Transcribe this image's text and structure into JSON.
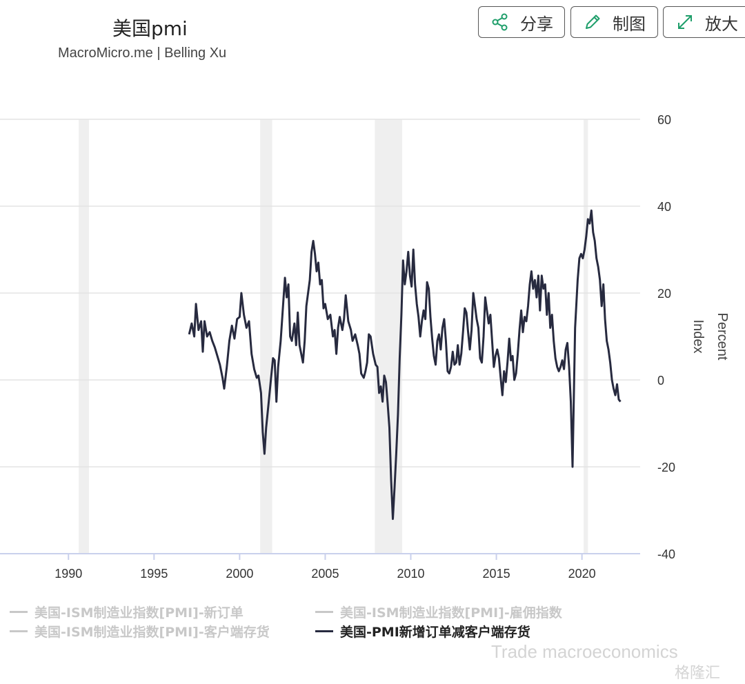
{
  "header": {
    "title": "美国pmi",
    "subtitle": "MacroMicro.me | Belling Xu"
  },
  "toolbar": {
    "share_label": "分享",
    "edit_label": "制图",
    "expand_label": "放大"
  },
  "watermark": {
    "text": "Trade macroeconomics",
    "brand": "格隆汇"
  },
  "colors": {
    "series": "#272a3f",
    "recession": "#efefef",
    "grid": "#e3e3e3",
    "x_axis": "#c9d0ec",
    "button_icon": "#1e9e6a",
    "legend_inactive": "#c8c8c8"
  },
  "chart_data": {
    "type": "line",
    "x_ticks": [
      "1990",
      "1995",
      "2000",
      "2005",
      "2010",
      "2015",
      "2020"
    ],
    "y_ticks": [
      "60",
      "40",
      "20",
      "0",
      "-20",
      "-40"
    ],
    "ylim": [
      -40,
      60
    ],
    "xlim": [
      1986.0,
      2023.4
    ],
    "y_axis_labels": [
      "Percent",
      "Index"
    ],
    "grid": true,
    "legend_position": "bottom",
    "recession_bands": [
      [
        1990.6,
        1991.2
      ],
      [
        2001.2,
        2001.9
      ],
      [
        2007.9,
        2009.5
      ],
      [
        2020.1,
        2020.35
      ]
    ],
    "legend": [
      {
        "name": "美国-ISM制造业指数[PMI]-新订单",
        "active": false
      },
      {
        "name": "美国-ISM制造业指数[PMI]-雇佣指数",
        "active": false
      },
      {
        "name": "美国-ISM制造业指数[PMI]-客户端存货",
        "active": false
      },
      {
        "name": "美国-PMI新增订单减客户端存货",
        "active": true
      }
    ],
    "series": [
      {
        "name": "美国-PMI新增订单减客户端存货",
        "points": [
          [
            1997.05,
            10.5
          ],
          [
            1997.2,
            13.0
          ],
          [
            1997.35,
            10.0
          ],
          [
            1997.45,
            17.5
          ],
          [
            1997.6,
            11.5
          ],
          [
            1997.75,
            13.5
          ],
          [
            1997.85,
            6.5
          ],
          [
            1997.95,
            13.5
          ],
          [
            1998.1,
            10.0
          ],
          [
            1998.25,
            11.0
          ],
          [
            1998.4,
            9.0
          ],
          [
            1998.55,
            7.5
          ],
          [
            1998.7,
            5.5
          ],
          [
            1998.85,
            3.5
          ],
          [
            1999.0,
            0.5
          ],
          [
            1999.1,
            -2.0
          ],
          [
            1999.25,
            3.0
          ],
          [
            1999.4,
            9.0
          ],
          [
            1999.55,
            12.5
          ],
          [
            1999.7,
            9.5
          ],
          [
            1999.85,
            14.0
          ],
          [
            2000.0,
            14.5
          ],
          [
            2000.1,
            20.0
          ],
          [
            2000.25,
            15.0
          ],
          [
            2000.4,
            12.0
          ],
          [
            2000.55,
            13.5
          ],
          [
            2000.7,
            6.0
          ],
          [
            2000.85,
            2.5
          ],
          [
            2001.0,
            0.5
          ],
          [
            2001.1,
            1.0
          ],
          [
            2001.25,
            -3.0
          ],
          [
            2001.35,
            -12.0
          ],
          [
            2001.45,
            -17.0
          ],
          [
            2001.55,
            -11.0
          ],
          [
            2001.7,
            -5.0
          ],
          [
            2001.85,
            1.0
          ],
          [
            2001.95,
            5.0
          ],
          [
            2002.05,
            4.5
          ],
          [
            2002.15,
            -5.0
          ],
          [
            2002.25,
            3.0
          ],
          [
            2002.4,
            9.0
          ],
          [
            2002.55,
            18.0
          ],
          [
            2002.65,
            23.5
          ],
          [
            2002.75,
            19.0
          ],
          [
            2002.85,
            22.0
          ],
          [
            2002.95,
            10.0
          ],
          [
            2003.05,
            9.0
          ],
          [
            2003.2,
            13.0
          ],
          [
            2003.3,
            8.0
          ],
          [
            2003.4,
            15.5
          ],
          [
            2003.5,
            8.0
          ],
          [
            2003.6,
            6.0
          ],
          [
            2003.7,
            4.0
          ],
          [
            2003.8,
            9.0
          ],
          [
            2003.9,
            17.0
          ],
          [
            2004.0,
            20.0
          ],
          [
            2004.1,
            23.0
          ],
          [
            2004.2,
            29.5
          ],
          [
            2004.3,
            32.0
          ],
          [
            2004.4,
            29.0
          ],
          [
            2004.5,
            25.0
          ],
          [
            2004.6,
            27.0
          ],
          [
            2004.7,
            22.0
          ],
          [
            2004.8,
            23.0
          ],
          [
            2004.9,
            16.5
          ],
          [
            2005.0,
            17.5
          ],
          [
            2005.15,
            14.0
          ],
          [
            2005.3,
            15.0
          ],
          [
            2005.45,
            10.0
          ],
          [
            2005.55,
            11.5
          ],
          [
            2005.65,
            6.0
          ],
          [
            2005.75,
            12.0
          ],
          [
            2005.85,
            14.5
          ],
          [
            2006.0,
            11.5
          ],
          [
            2006.1,
            14.0
          ],
          [
            2006.2,
            19.5
          ],
          [
            2006.35,
            13.5
          ],
          [
            2006.5,
            11.5
          ],
          [
            2006.6,
            9.0
          ],
          [
            2006.75,
            10.5
          ],
          [
            2006.9,
            8.0
          ],
          [
            2007.0,
            6.0
          ],
          [
            2007.1,
            1.5
          ],
          [
            2007.25,
            0.5
          ],
          [
            2007.35,
            2.0
          ],
          [
            2007.45,
            4.0
          ],
          [
            2007.55,
            10.5
          ],
          [
            2007.65,
            10.0
          ],
          [
            2007.8,
            6.0
          ],
          [
            2007.95,
            3.5
          ],
          [
            2008.05,
            3.0
          ],
          [
            2008.15,
            -3.0
          ],
          [
            2008.25,
            -1.5
          ],
          [
            2008.35,
            -5.0
          ],
          [
            2008.45,
            1.0
          ],
          [
            2008.55,
            -0.5
          ],
          [
            2008.65,
            -5.5
          ],
          [
            2008.75,
            -11.0
          ],
          [
            2008.85,
            -23.0
          ],
          [
            2008.95,
            -32.0
          ],
          [
            2009.05,
            -25.0
          ],
          [
            2009.15,
            -17.0
          ],
          [
            2009.25,
            -8.0
          ],
          [
            2009.35,
            5.0
          ],
          [
            2009.45,
            15.0
          ],
          [
            2009.55,
            27.5
          ],
          [
            2009.65,
            22.0
          ],
          [
            2009.75,
            25.0
          ],
          [
            2009.85,
            29.5
          ],
          [
            2009.95,
            24.0
          ],
          [
            2010.05,
            21.5
          ],
          [
            2010.15,
            30.0
          ],
          [
            2010.25,
            22.0
          ],
          [
            2010.35,
            17.5
          ],
          [
            2010.45,
            14.5
          ],
          [
            2010.55,
            10.0
          ],
          [
            2010.65,
            13.5
          ],
          [
            2010.75,
            16.0
          ],
          [
            2010.85,
            14.0
          ],
          [
            2010.95,
            22.5
          ],
          [
            2011.05,
            21.0
          ],
          [
            2011.15,
            14.5
          ],
          [
            2011.25,
            9.5
          ],
          [
            2011.35,
            5.5
          ],
          [
            2011.45,
            3.5
          ],
          [
            2011.55,
            9.0
          ],
          [
            2011.65,
            10.5
          ],
          [
            2011.75,
            7.0
          ],
          [
            2011.85,
            12.0
          ],
          [
            2011.95,
            14.0
          ],
          [
            2012.05,
            9.0
          ],
          [
            2012.15,
            2.0
          ],
          [
            2012.25,
            1.5
          ],
          [
            2012.35,
            3.0
          ],
          [
            2012.45,
            6.5
          ],
          [
            2012.55,
            3.5
          ],
          [
            2012.65,
            4.0
          ],
          [
            2012.75,
            8.0
          ],
          [
            2012.85,
            3.5
          ],
          [
            2012.95,
            6.0
          ],
          [
            2013.05,
            11.0
          ],
          [
            2013.15,
            16.5
          ],
          [
            2013.25,
            15.5
          ],
          [
            2013.35,
            11.0
          ],
          [
            2013.45,
            7.0
          ],
          [
            2013.55,
            11.5
          ],
          [
            2013.65,
            20.0
          ],
          [
            2013.75,
            17.0
          ],
          [
            2013.85,
            14.0
          ],
          [
            2013.95,
            12.0
          ],
          [
            2014.05,
            5.0
          ],
          [
            2014.15,
            4.0
          ],
          [
            2014.25,
            10.0
          ],
          [
            2014.35,
            19.0
          ],
          [
            2014.45,
            16.0
          ],
          [
            2014.55,
            13.0
          ],
          [
            2014.65,
            15.0
          ],
          [
            2014.75,
            9.0
          ],
          [
            2014.85,
            3.0
          ],
          [
            2014.95,
            5.5
          ],
          [
            2015.05,
            7.0
          ],
          [
            2015.15,
            5.0
          ],
          [
            2015.25,
            0.5
          ],
          [
            2015.35,
            -3.5
          ],
          [
            2015.45,
            2.0
          ],
          [
            2015.55,
            -0.5
          ],
          [
            2015.65,
            4.0
          ],
          [
            2015.75,
            9.5
          ],
          [
            2015.85,
            4.5
          ],
          [
            2015.95,
            5.5
          ],
          [
            2016.05,
            0.0
          ],
          [
            2016.15,
            1.5
          ],
          [
            2016.25,
            6.0
          ],
          [
            2016.35,
            11.5
          ],
          [
            2016.45,
            16.0
          ],
          [
            2016.55,
            11.0
          ],
          [
            2016.65,
            14.5
          ],
          [
            2016.75,
            13.5
          ],
          [
            2016.85,
            17.0
          ],
          [
            2016.95,
            22.0
          ],
          [
            2017.05,
            25.0
          ],
          [
            2017.15,
            21.0
          ],
          [
            2017.25,
            23.0
          ],
          [
            2017.35,
            19.0
          ],
          [
            2017.45,
            24.0
          ],
          [
            2017.55,
            16.0
          ],
          [
            2017.65,
            24.0
          ],
          [
            2017.75,
            21.0
          ],
          [
            2017.85,
            22.0
          ],
          [
            2017.95,
            15.0
          ],
          [
            2018.05,
            20.0
          ],
          [
            2018.15,
            12.0
          ],
          [
            2018.25,
            15.0
          ],
          [
            2018.35,
            9.0
          ],
          [
            2018.45,
            5.0
          ],
          [
            2018.55,
            3.0
          ],
          [
            2018.65,
            2.0
          ],
          [
            2018.75,
            3.0
          ],
          [
            2018.85,
            4.5
          ],
          [
            2018.95,
            2.5
          ],
          [
            2019.05,
            7.0
          ],
          [
            2019.15,
            8.5
          ],
          [
            2019.25,
            3.0
          ],
          [
            2019.35,
            -5.0
          ],
          [
            2019.45,
            -20.0
          ],
          [
            2019.6,
            12.0
          ],
          [
            2019.75,
            23.0
          ],
          [
            2019.85,
            28.0
          ],
          [
            2019.95,
            29.0
          ],
          [
            2020.05,
            28.0
          ],
          [
            2020.15,
            30.0
          ],
          [
            2020.25,
            33.0
          ],
          [
            2020.35,
            37.0
          ],
          [
            2020.45,
            36.0
          ],
          [
            2020.55,
            39.0
          ],
          [
            2020.65,
            34.0
          ],
          [
            2020.75,
            32.0
          ],
          [
            2020.85,
            28.0
          ],
          [
            2020.95,
            26.0
          ],
          [
            2021.05,
            23.0
          ],
          [
            2021.15,
            17.0
          ],
          [
            2021.25,
            22.0
          ],
          [
            2021.35,
            14.0
          ],
          [
            2021.45,
            9.0
          ],
          [
            2021.55,
            7.0
          ],
          [
            2021.65,
            4.0
          ],
          [
            2021.75,
            0.0
          ],
          [
            2021.85,
            -2.0
          ],
          [
            2021.95,
            -3.5
          ],
          [
            2022.05,
            -1.0
          ],
          [
            2022.15,
            -4.5
          ],
          [
            2022.25,
            -5.0
          ]
        ]
      }
    ]
  }
}
